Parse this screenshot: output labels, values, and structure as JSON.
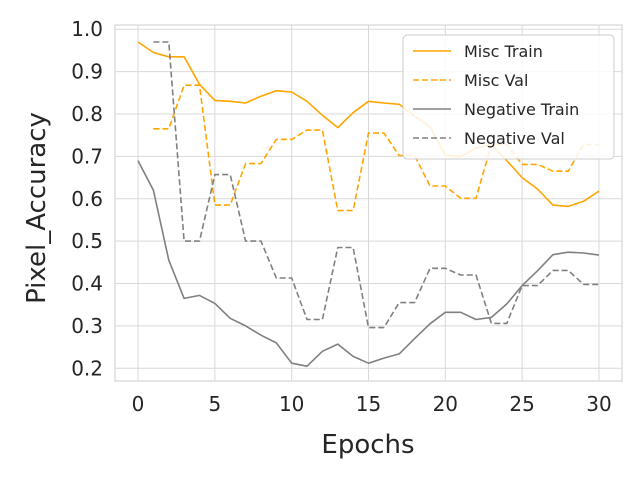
{
  "chart_data": {
    "type": "line",
    "title": "",
    "xlabel": "Epochs",
    "ylabel": "Pixel_Accuracy",
    "xlim": [
      -1.5,
      31.5
    ],
    "ylim": [
      0.17,
      1.01
    ],
    "xticks": [
      0,
      5,
      10,
      15,
      20,
      25,
      30
    ],
    "yticks": [
      0.2,
      0.3,
      0.4,
      0.5,
      0.6,
      0.7,
      0.8,
      0.9,
      1.0
    ],
    "xtick_labels": [
      "0",
      "5",
      "10",
      "15",
      "20",
      "25",
      "30"
    ],
    "ytick_labels": [
      "0.2",
      "0.3",
      "0.4",
      "0.5",
      "0.6",
      "0.7",
      "0.8",
      "0.9",
      "1.0"
    ],
    "grid": true,
    "legend_position": "top-right",
    "colors": {
      "orange": "#ffa500",
      "gray": "#808080",
      "grid": "#d9d9d9",
      "text": "#262626"
    },
    "series": [
      {
        "name": "Misc Train",
        "color": "#ffa500",
        "dash": "solid",
        "x": [
          0,
          1,
          2,
          3,
          4,
          5,
          6,
          7,
          8,
          9,
          10,
          11,
          12,
          13,
          14,
          15,
          16,
          17,
          18,
          19,
          20,
          21,
          22,
          23,
          24,
          25,
          26,
          27,
          28,
          29,
          30
        ],
        "values": [
          0.97,
          0.945,
          0.935,
          0.935,
          0.87,
          0.832,
          0.83,
          0.826,
          0.842,
          0.855,
          0.852,
          0.83,
          0.797,
          0.768,
          0.803,
          0.83,
          0.826,
          0.823,
          0.795,
          0.77,
          0.703,
          0.7,
          0.72,
          0.728,
          0.69,
          0.65,
          0.623,
          0.585,
          0.582,
          0.594,
          0.618
        ]
      },
      {
        "name": "Misc Val",
        "color": "#ffa500",
        "dash": "dashed",
        "x": [
          1,
          2,
          3,
          4,
          5,
          6,
          7,
          8,
          9,
          10,
          11,
          12,
          13,
          14,
          15,
          16,
          17,
          18,
          19,
          20,
          21,
          22,
          23,
          24,
          25,
          26,
          27,
          28,
          29,
          30
        ],
        "values": [
          0.765,
          0.765,
          0.868,
          0.868,
          0.585,
          0.585,
          0.683,
          0.683,
          0.74,
          0.74,
          0.762,
          0.762,
          0.572,
          0.572,
          0.755,
          0.755,
          0.702,
          0.702,
          0.63,
          0.63,
          0.601,
          0.601,
          0.728,
          0.728,
          0.681,
          0.681,
          0.665,
          0.665,
          0.728,
          0.728
        ]
      },
      {
        "name": "Negative Train",
        "color": "#808080",
        "dash": "solid",
        "x": [
          0,
          1,
          2,
          3,
          4,
          5,
          6,
          7,
          8,
          9,
          10,
          11,
          12,
          13,
          14,
          15,
          16,
          17,
          18,
          19,
          20,
          21,
          22,
          23,
          24,
          25,
          26,
          27,
          28,
          29,
          30
        ],
        "values": [
          0.69,
          0.62,
          0.455,
          0.365,
          0.372,
          0.353,
          0.318,
          0.3,
          0.278,
          0.26,
          0.212,
          0.205,
          0.24,
          0.257,
          0.228,
          0.212,
          0.224,
          0.234,
          0.27,
          0.305,
          0.332,
          0.332,
          0.315,
          0.32,
          0.352,
          0.395,
          0.43,
          0.468,
          0.474,
          0.472,
          0.467
        ]
      },
      {
        "name": "Negative Val",
        "color": "#808080",
        "dash": "dashed",
        "x": [
          1,
          2,
          3,
          4,
          5,
          6,
          7,
          8,
          9,
          10,
          11,
          12,
          13,
          14,
          15,
          16,
          17,
          18,
          19,
          20,
          21,
          22,
          23,
          24,
          25,
          26,
          27,
          28,
          29,
          30
        ],
        "values": [
          0.97,
          0.97,
          0.5,
          0.5,
          0.657,
          0.657,
          0.5,
          0.5,
          0.413,
          0.413,
          0.315,
          0.315,
          0.485,
          0.485,
          0.296,
          0.296,
          0.355,
          0.355,
          0.436,
          0.436,
          0.42,
          0.42,
          0.306,
          0.306,
          0.395,
          0.395,
          0.431,
          0.431,
          0.398,
          0.398
        ]
      }
    ]
  }
}
